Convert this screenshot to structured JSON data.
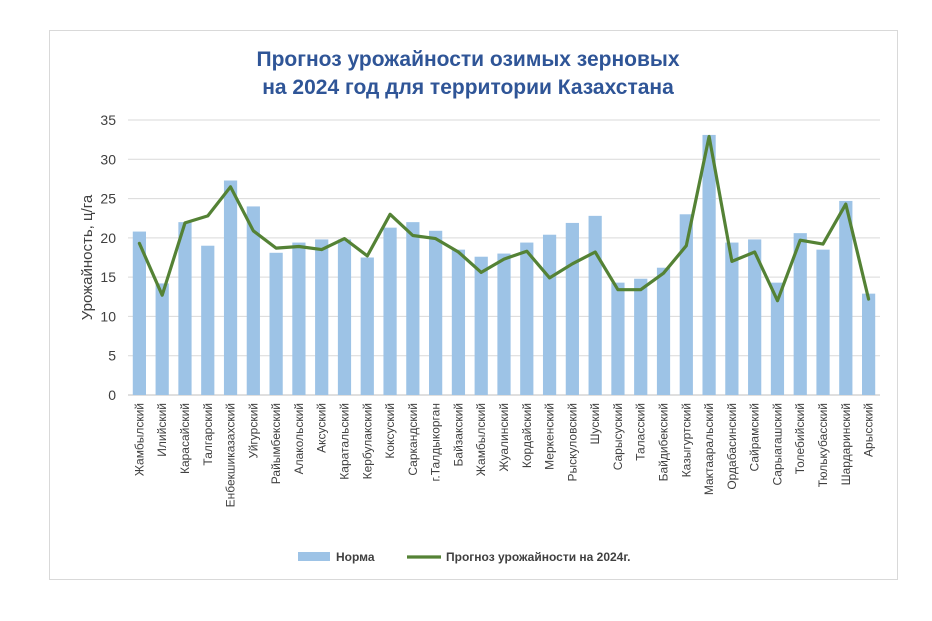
{
  "chart_data": {
    "type": "bar",
    "title_lines": [
      "Прогноз урожайности озимых зерновых",
      "на 2024 год для территории Казахстана"
    ],
    "xlabel": "",
    "ylabel": "Урожайность, ц/га",
    "ylim": [
      0,
      35
    ],
    "yticks": [
      0,
      5,
      10,
      15,
      20,
      25,
      30,
      35
    ],
    "grid": true,
    "legend_position": "bottom",
    "categories": [
      "Жамбылский",
      "Илийский",
      "Карасайский",
      "Талгарский",
      "Енбекшиказахский",
      "Уйгурский",
      "Райымбекский",
      "Алакольский",
      "Аксуский",
      "Каратальский",
      "Кербулакский",
      "Коксуский",
      "Саркандский",
      "г.Талдыкорган",
      "Байзакский",
      "Жамбылский",
      "Жуалинский",
      "Кордайский",
      "Меркенский",
      "Рыскуловский",
      "Шуский",
      "Сарысуский",
      "Таласский",
      "Байдибекский",
      "Казыгуртский",
      "Мактааральский",
      "Ордабасинский",
      "Сайрамский",
      "Сарыагашский",
      "Толебийский",
      "Тюлькубасский",
      "Шардаринский",
      "Арысский"
    ],
    "series": [
      {
        "name": "Норма",
        "kind": "bar",
        "color": "#9dc3e6",
        "values": [
          20.8,
          14.2,
          22.0,
          19.0,
          27.3,
          24.0,
          18.1,
          19.4,
          19.8,
          19.8,
          17.5,
          21.3,
          22.0,
          20.9,
          18.5,
          17.6,
          18.0,
          19.4,
          20.4,
          21.9,
          22.8,
          14.3,
          14.8,
          16.2,
          23.0,
          33.1,
          19.4,
          19.8,
          14.3,
          20.6,
          18.5,
          24.7,
          12.9
        ]
      },
      {
        "name": "Прогноз урожайности на 2024г.",
        "kind": "line",
        "color": "#548235",
        "values": [
          19.3,
          12.7,
          21.9,
          22.8,
          26.5,
          20.9,
          18.7,
          18.9,
          18.5,
          19.9,
          17.7,
          23.0,
          20.3,
          19.9,
          18.2,
          15.6,
          17.3,
          18.3,
          14.9,
          16.7,
          18.2,
          13.4,
          13.4,
          15.5,
          19.0,
          32.9,
          17.0,
          18.2,
          12.0,
          19.7,
          19.2,
          24.3,
          12.2
        ]
      }
    ]
  }
}
